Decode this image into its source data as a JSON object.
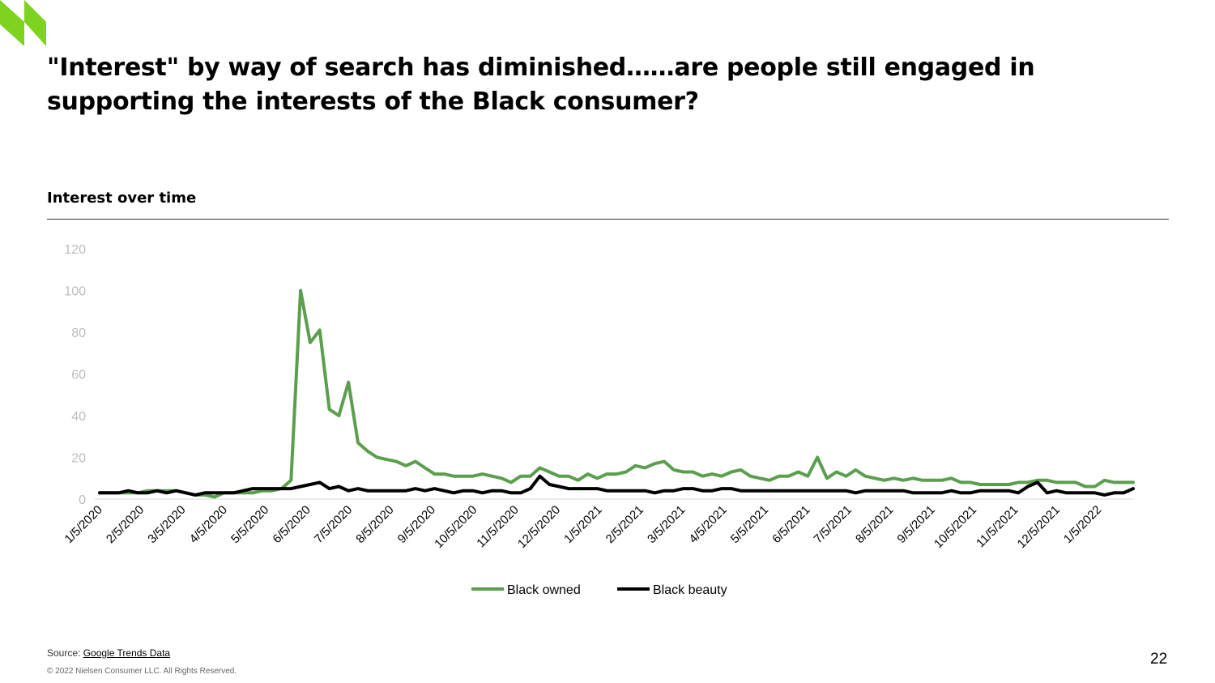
{
  "page": {
    "title": "\"Interest\" by way of search has diminished……are people still engaged in supporting the interests of the Black consumer?",
    "subtitle": "Interest over time",
    "source_label": "Source: ",
    "source_link": "Google Trends Data",
    "copyright": "© 2022 Nielsen Consumer LLC. All Rights Reserved.",
    "page_number": "22",
    "colors": {
      "accent": "#7ed321",
      "series_green": "#5b9e4e",
      "series_black": "#000000"
    }
  },
  "chart_data": {
    "type": "line",
    "title": "",
    "xlabel": "",
    "ylabel": "",
    "ylim": [
      0,
      120
    ],
    "yticks": [
      0,
      20,
      40,
      60,
      80,
      100,
      120
    ],
    "grid": false,
    "legend": "bottom",
    "x_tick_labels": [
      "1/5/2020",
      "2/5/2020",
      "3/5/2020",
      "4/5/2020",
      "5/5/2020",
      "6/5/2020",
      "7/5/2020",
      "8/5/2020",
      "9/5/2020",
      "10/5/2020",
      "11/5/2020",
      "12/5/2020",
      "1/5/2021",
      "2/5/2021",
      "3/5/2021",
      "4/5/2021",
      "5/5/2021",
      "6/5/2021",
      "7/5/2021",
      "8/5/2021",
      "9/5/2021",
      "10/5/2021",
      "11/5/2021",
      "12/5/2021",
      "1/5/2022"
    ],
    "series": [
      {
        "name": "Black owned",
        "color": "#5b9e4e",
        "values": [
          3,
          3,
          3,
          3,
          3,
          4,
          4,
          4,
          4,
          3,
          2,
          2,
          1,
          3,
          3,
          3,
          3,
          4,
          4,
          5,
          9,
          100,
          75,
          81,
          43,
          40,
          56,
          27,
          23,
          20,
          19,
          18,
          16,
          18,
          15,
          12,
          12,
          11,
          11,
          11,
          12,
          11,
          10,
          8,
          11,
          11,
          15,
          13,
          11,
          11,
          9,
          12,
          10,
          12,
          12,
          13,
          16,
          15,
          17,
          18,
          14,
          13,
          13,
          11,
          12,
          11,
          13,
          14,
          11,
          10,
          9,
          11,
          11,
          13,
          11,
          20,
          10,
          13,
          11,
          14,
          11,
          10,
          9,
          10,
          9,
          10,
          9,
          9,
          9,
          10,
          8,
          8,
          7,
          7,
          7,
          7,
          8,
          8,
          9,
          9,
          8,
          8,
          8,
          6,
          6,
          9,
          8,
          8,
          8
        ]
      },
      {
        "name": "Black beauty",
        "color": "#000000",
        "values": [
          3,
          3,
          3,
          4,
          3,
          3,
          4,
          3,
          4,
          3,
          2,
          3,
          3,
          3,
          3,
          4,
          5,
          5,
          5,
          5,
          5,
          6,
          7,
          8,
          5,
          6,
          4,
          5,
          4,
          4,
          4,
          4,
          4,
          5,
          4,
          5,
          4,
          3,
          4,
          4,
          3,
          4,
          4,
          3,
          3,
          5,
          11,
          7,
          6,
          5,
          5,
          5,
          5,
          4,
          4,
          4,
          4,
          4,
          3,
          4,
          4,
          5,
          5,
          4,
          4,
          5,
          5,
          4,
          4,
          4,
          4,
          4,
          4,
          4,
          4,
          4,
          4,
          4,
          4,
          3,
          4,
          4,
          4,
          4,
          4,
          3,
          3,
          3,
          3,
          4,
          3,
          3,
          4,
          4,
          4,
          4,
          3,
          6,
          8,
          3,
          4,
          3,
          3,
          3,
          3,
          2,
          3,
          3,
          5
        ]
      }
    ]
  }
}
